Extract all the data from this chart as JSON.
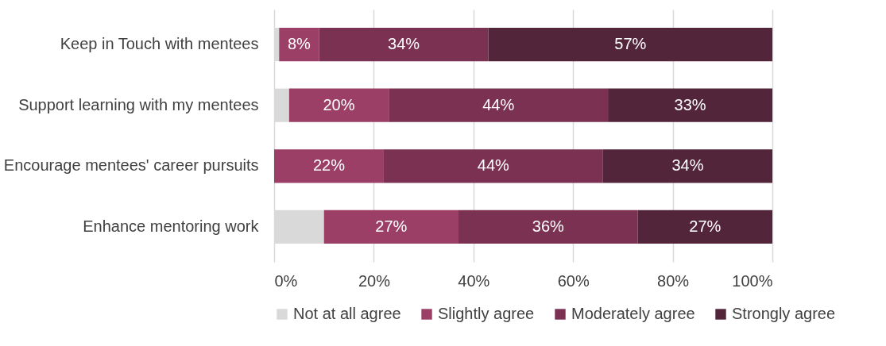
{
  "chart_data": {
    "type": "bar",
    "orientation": "horizontal",
    "stacked": true,
    "categories": [
      "Keep in Touch with mentees",
      "Support learning with my mentees",
      "Encourage mentees' career pursuits",
      "Enhance mentoring work"
    ],
    "series": [
      {
        "name": "Not at all agree",
        "color": "#d9d9d9",
        "values": [
          1,
          3,
          null,
          10
        ],
        "value_labels": [
          null,
          null,
          null,
          null
        ]
      },
      {
        "name": "Slightly agree",
        "color": "#9b3f67",
        "values": [
          8,
          20,
          22,
          27
        ],
        "value_labels": [
          "8%",
          "20%",
          "22%",
          "27%"
        ]
      },
      {
        "name": "Moderately agree",
        "color": "#7a3152",
        "values": [
          34,
          44,
          44,
          36
        ],
        "value_labels": [
          "34%",
          "44%",
          "44%",
          "36%"
        ]
      },
      {
        "name": "Strongly agree",
        "color": "#52253a",
        "values": [
          57,
          33,
          34,
          27
        ],
        "value_labels": [
          "57%",
          "33%",
          "34%",
          "27%"
        ]
      }
    ],
    "xlim": [
      0,
      100
    ],
    "xticks": [
      {
        "value": 0,
        "label": "0%"
      },
      {
        "value": 20,
        "label": "20%"
      },
      {
        "value": 40,
        "label": "40%"
      },
      {
        "value": 60,
        "label": "60%"
      },
      {
        "value": 80,
        "label": "80%"
      },
      {
        "value": 100,
        "label": "100%"
      }
    ],
    "grid": "x",
    "legend": "bottom"
  }
}
